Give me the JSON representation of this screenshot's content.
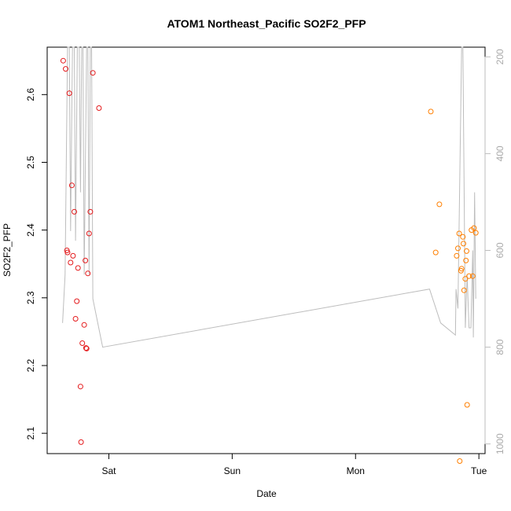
{
  "chart_data": {
    "type": "scatter",
    "title": "ATOM1 Northeast_Pacific SO2F2_PFP",
    "xlabel": "Date",
    "ylabel": "SO2F2_PFP",
    "x_ticks": [
      {
        "label": "Sat",
        "day": 1
      },
      {
        "label": "Sun",
        "day": 2
      },
      {
        "label": "Mon",
        "day": 3
      },
      {
        "label": "Tue",
        "day": 4
      }
    ],
    "xlim_days": [
      0.5,
      4.05
    ],
    "ylim": [
      2.07,
      2.67
    ],
    "y_ticks": [
      2.1,
      2.2,
      2.3,
      2.4,
      2.5,
      2.6
    ],
    "y2_ticks": [
      200,
      400,
      600,
      800,
      1000
    ],
    "y2lim": [
      1020,
      180
    ],
    "grid": false,
    "series": [
      {
        "color": "#e41a1c",
        "points": [
          [
            0.63,
            2.65
          ],
          [
            0.65,
            2.638
          ],
          [
            0.66,
            2.37
          ],
          [
            0.665,
            2.367
          ],
          [
            0.68,
            2.602
          ],
          [
            0.69,
            2.352
          ],
          [
            0.7,
            2.466
          ],
          [
            0.71,
            2.362
          ],
          [
            0.72,
            2.427
          ],
          [
            0.73,
            2.269
          ],
          [
            0.74,
            2.295
          ],
          [
            0.75,
            2.344
          ],
          [
            0.77,
            2.169
          ],
          [
            0.775,
            2.087
          ],
          [
            0.785,
            2.233
          ],
          [
            0.8,
            2.26
          ],
          [
            0.81,
            2.355
          ],
          [
            0.815,
            2.226
          ],
          [
            0.82,
            2.225
          ],
          [
            0.83,
            2.336
          ],
          [
            0.84,
            2.395
          ],
          [
            0.85,
            2.427
          ],
          [
            0.87,
            2.632
          ],
          [
            0.92,
            2.58
          ]
        ]
      },
      {
        "color": "#ff7f00",
        "points": [
          [
            3.61,
            2.575
          ],
          [
            3.65,
            2.367
          ],
          [
            3.68,
            2.438
          ],
          [
            3.82,
            2.362
          ],
          [
            3.83,
            2.373
          ],
          [
            3.84,
            2.395
          ],
          [
            3.845,
            2.059
          ],
          [
            3.855,
            2.34
          ],
          [
            3.86,
            2.343
          ],
          [
            3.87,
            2.39
          ],
          [
            3.875,
            2.38
          ],
          [
            3.88,
            2.311
          ],
          [
            3.89,
            2.328
          ],
          [
            3.895,
            2.355
          ],
          [
            3.9,
            2.369
          ],
          [
            3.905,
            2.142
          ],
          [
            3.92,
            2.332
          ],
          [
            3.94,
            2.4
          ],
          [
            3.95,
            2.332
          ],
          [
            3.96,
            2.403
          ],
          [
            3.975,
            2.396
          ]
        ]
      }
    ],
    "line_series": {
      "color": "#bdbdbd",
      "axis": "right",
      "points": [
        [
          0.625,
          750
        ],
        [
          0.645,
          650
        ],
        [
          0.665,
          180
        ],
        [
          0.68,
          180
        ],
        [
          0.69,
          560
        ],
        [
          0.705,
          180
        ],
        [
          0.72,
          180
        ],
        [
          0.73,
          580
        ],
        [
          0.745,
          180
        ],
        [
          0.76,
          180
        ],
        [
          0.77,
          480
        ],
        [
          0.78,
          180
        ],
        [
          0.79,
          180
        ],
        [
          0.8,
          650
        ],
        [
          0.82,
          180
        ],
        [
          0.83,
          180
        ],
        [
          0.84,
          650
        ],
        [
          0.85,
          180
        ],
        [
          0.86,
          180
        ],
        [
          0.87,
          700
        ],
        [
          0.95,
          800
        ],
        [
          3.6,
          680
        ],
        [
          3.69,
          750
        ],
        [
          3.81,
          775
        ],
        [
          3.815,
          680
        ],
        [
          3.83,
          720
        ],
        [
          3.86,
          180
        ],
        [
          3.87,
          180
        ],
        [
          3.89,
          760
        ],
        [
          3.905,
          650
        ],
        [
          3.92,
          760
        ],
        [
          3.935,
          760
        ],
        [
          3.95,
          600
        ],
        [
          3.955,
          780
        ],
        [
          3.965,
          480
        ],
        [
          3.975,
          700
        ]
      ]
    }
  }
}
